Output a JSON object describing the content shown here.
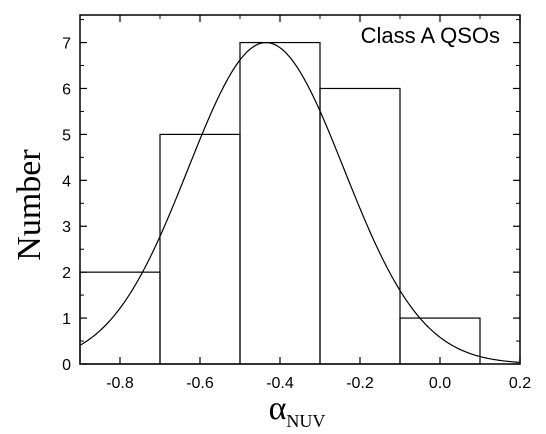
{
  "chart_data": {
    "type": "bar",
    "histogram": true,
    "bins": [
      {
        "from": -0.9,
        "to": -0.7,
        "count": 2
      },
      {
        "from": -0.7,
        "to": -0.5,
        "count": 5
      },
      {
        "from": -0.5,
        "to": -0.3,
        "count": 7
      },
      {
        "from": -0.3,
        "to": -0.1,
        "count": 6
      },
      {
        "from": -0.1,
        "to": 0.1,
        "count": 1
      }
    ],
    "fit_curve": {
      "type": "gaussian",
      "mean": -0.435,
      "sigma": 0.195,
      "amplitude": 7.0
    },
    "xlim": [
      -0.9,
      0.2
    ],
    "ylim": [
      0,
      7.6
    ],
    "xticks": [
      -0.8,
      -0.6,
      -0.4,
      -0.2,
      0.0,
      0.2
    ],
    "xtick_labels": [
      "-0.8",
      "-0.6",
      "-0.4",
      "-0.2",
      "0.0",
      "0.2"
    ],
    "yticks": [
      0,
      1,
      2,
      3,
      4,
      5,
      6,
      7
    ],
    "ytick_labels": [
      "0",
      "1",
      "2",
      "3",
      "4",
      "5",
      "6",
      "7"
    ],
    "xlabel": {
      "symbol": "α",
      "subscript": "NUV"
    },
    "ylabel": "Number",
    "annotation": "Class A QSOs",
    "grid": false,
    "colors": {
      "line": "#000000",
      "background": "#ffffff"
    }
  }
}
